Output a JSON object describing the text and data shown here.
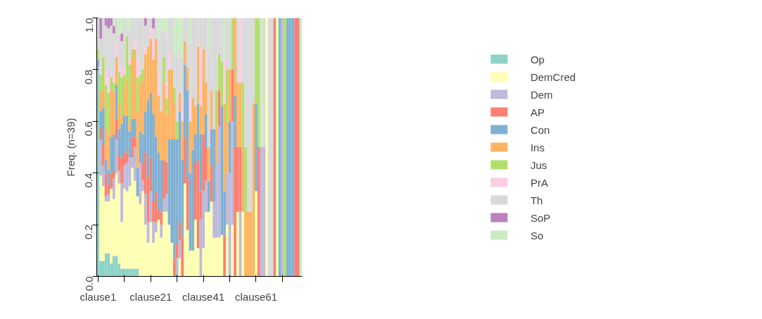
{
  "chart_data": {
    "type": "bar",
    "stacked": true,
    "ylabel": "Freq. (n=39)",
    "categories": [
      "clause1",
      null,
      null,
      null,
      null,
      null,
      null,
      null,
      null,
      null,
      null,
      null,
      null,
      null,
      null,
      null,
      null,
      null,
      null,
      null,
      "clause21",
      null,
      null,
      null,
      null,
      null,
      null,
      null,
      null,
      null,
      null,
      null,
      null,
      null,
      null,
      null,
      null,
      null,
      null,
      null,
      "clause41",
      null,
      null,
      null,
      null,
      null,
      null,
      null,
      null,
      null,
      null,
      null,
      null,
      null,
      null,
      null,
      null,
      null,
      null,
      null,
      "clause61",
      null,
      null,
      null,
      null,
      null,
      null,
      null,
      null,
      null,
      null,
      null,
      null,
      null,
      null,
      null,
      null,
      null
    ],
    "ylim": [
      0,
      1
    ],
    "yticks": [
      {
        "value": 0,
        "label": "0.0"
      },
      {
        "value": 0.2,
        "label": "0.2"
      },
      {
        "value": 0.4,
        "label": "0.4"
      },
      {
        "value": 0.6,
        "label": "0.6"
      },
      {
        "value": 0.8,
        "label": "0.8"
      },
      {
        "value": 1,
        "label": "1.0"
      }
    ],
    "grid": false,
    "legend": "right",
    "series": [
      {
        "name": "Op",
        "color": "#8dd3c7",
        "values": [
          0.81,
          0.06,
          0.06,
          0.09,
          0.09,
          0.05,
          0.08,
          0.08,
          0.05,
          0.03,
          0.03,
          0.03,
          0.03,
          0.03,
          0.03,
          0.03,
          0,
          0,
          0,
          0,
          0,
          0,
          0,
          0,
          0,
          0,
          0,
          0,
          0,
          0,
          0,
          0,
          0,
          0,
          0,
          0,
          0,
          0,
          0,
          0,
          0,
          0,
          0,
          0,
          0,
          0,
          0,
          0,
          0,
          0,
          0,
          0,
          0,
          0,
          0,
          0,
          0,
          0,
          0,
          0,
          0,
          0,
          0,
          0,
          0,
          0,
          0,
          0,
          0,
          0,
          0,
          0,
          0,
          0,
          0,
          0,
          0,
          0
        ]
      },
      {
        "name": "DemCred",
        "color": "#ffffb3",
        "values": [
          0,
          0.33,
          0.29,
          0.2,
          0.2,
          0.29,
          0.22,
          0.32,
          0.31,
          0.18,
          0.31,
          0.3,
          0.32,
          0.39,
          0.34,
          0.28,
          0.28,
          0.33,
          0.2,
          0.13,
          0.21,
          0.13,
          0.17,
          0.22,
          0.15,
          0.25,
          0.25,
          0.2,
          0.13,
          0,
          0,
          0.07,
          0,
          0.36,
          0.18,
          0.1,
          0.1,
          0.22,
          0.11,
          0,
          0.11,
          0.25,
          0.25,
          0.29,
          0.15,
          0.15,
          0.15,
          0.16,
          0,
          0.2,
          0,
          0.2,
          0,
          0.25,
          0,
          0.25,
          0,
          0,
          0,
          0,
          0.33,
          0,
          0,
          0,
          1,
          0,
          0,
          0,
          1,
          0,
          0,
          0,
          0,
          0,
          0,
          0,
          0,
          0
        ]
      },
      {
        "name": "Dem",
        "color": "#bebada",
        "values": [
          0,
          0.14,
          0.08,
          0.02,
          0.03,
          0,
          0.08,
          0.13,
          0.05,
          0.15,
          0.09,
          0.11,
          0.11,
          0.04,
          0.13,
          0,
          0.16,
          0.04,
          0.12,
          0.08,
          0.12,
          0.08,
          0.04,
          0,
          0.05,
          0.05,
          0.07,
          0,
          0,
          0,
          0.07,
          0.07,
          0,
          0,
          0,
          0,
          0,
          0,
          0,
          0.22,
          0.22,
          0.12,
          0,
          0,
          0.14,
          0.29,
          0.43,
          0,
          0,
          0.2,
          0.4,
          0.4,
          0,
          0,
          0.25,
          0,
          0,
          0,
          0,
          0,
          0,
          0,
          0.5,
          0.5,
          0,
          0,
          0,
          0,
          0,
          0,
          1,
          0,
          0,
          0,
          0,
          0,
          0,
          0
        ]
      },
      {
        "name": "AP",
        "color": "#fb8072",
        "values": [
          0,
          0.05,
          0.08,
          0.09,
          0.03,
          0.06,
          0.03,
          0.08,
          0.06,
          0.1,
          0.05,
          0.04,
          0,
          0.08,
          0.04,
          0,
          0,
          0.07,
          0.16,
          0.17,
          0.13,
          0.08,
          0.12,
          0.04,
          0.05,
          0.15,
          0.12,
          0,
          0,
          0.07,
          0.06,
          0.07,
          0.15,
          0.18,
          0.2,
          0,
          0,
          0.22,
          0.34,
          0.11,
          0.22,
          0.13,
          0,
          0.14,
          0,
          0,
          0.14,
          0,
          0.16,
          0,
          0,
          0.2,
          0.5,
          0.25,
          0.25,
          0,
          0,
          0,
          0,
          0,
          0,
          0.5,
          0,
          0,
          0,
          0,
          0,
          1,
          0,
          0,
          0,
          0,
          0,
          0,
          0,
          1,
          1,
          0
        ]
      },
      {
        "name": "Con",
        "color": "#80b1d3",
        "values": [
          0.03,
          0.06,
          0.14,
          0.05,
          0.06,
          0.14,
          0.14,
          0.13,
          0.1,
          0.13,
          0.14,
          0.14,
          0.1,
          0.07,
          0.07,
          0.11,
          0.12,
          0.11,
          0.16,
          0.3,
          0.25,
          0.34,
          0.21,
          0.22,
          0.2,
          0,
          0,
          0.33,
          0.4,
          0.46,
          0.4,
          0.43,
          0.3,
          0.28,
          0.34,
          0.3,
          0.39,
          0.11,
          0.22,
          0.22,
          0,
          0.13,
          0.12,
          0.14,
          0.28,
          0,
          0,
          0.5,
          0.17,
          0,
          0.2,
          0,
          0.2,
          0,
          0,
          0,
          0,
          0,
          0,
          0,
          0.34,
          0,
          0,
          0,
          0,
          0,
          0,
          0,
          0,
          1,
          0,
          0,
          1,
          1,
          1,
          0,
          0,
          0
        ]
      },
      {
        "name": "Ins",
        "color": "#fdb462",
        "values": [
          0,
          0.08,
          0.07,
          0.12,
          0.14,
          0.18,
          0.17,
          0.11,
          0.1,
          0.03,
          0.11,
          0.14,
          0.04,
          0.23,
          0.27,
          0.22,
          0.19,
          0.21,
          0.22,
          0.21,
          0.21,
          0.21,
          0.38,
          0.22,
          0.19,
          0.3,
          0.19,
          0.27,
          0.27,
          0.14,
          0,
          0.07,
          0.15,
          0.09,
          0.09,
          0.2,
          0.2,
          0.11,
          0.22,
          0.11,
          0.33,
          0.12,
          0.13,
          0.15,
          0,
          0.14,
          0,
          0,
          0.34,
          0.2,
          0.2,
          0,
          0.3,
          0.25,
          0.25,
          0.25,
          0.25,
          0.25,
          0.25,
          0.67,
          0,
          0,
          0,
          0,
          0,
          0,
          0,
          0,
          0,
          0,
          0,
          0,
          0,
          0,
          0,
          0,
          0,
          0
        ]
      },
      {
        "name": "Jus",
        "color": "#b3de69",
        "values": [
          0.04,
          0.06,
          0.13,
          0.17,
          0.16,
          0.05,
          0.03,
          0,
          0.12,
          0.15,
          0.05,
          0.17,
          0.22,
          0.04,
          0,
          0.13,
          0.03,
          0.04,
          0,
          0,
          0,
          0,
          0,
          0,
          0,
          0.1,
          0.06,
          0,
          0,
          0.06,
          0.07,
          0,
          0,
          0,
          0,
          0,
          0,
          0,
          0,
          0,
          0,
          0,
          0,
          0,
          0,
          0.14,
          0.14,
          0.17,
          0,
          0.2,
          0,
          0.2,
          0,
          0,
          0,
          0.25,
          0.25,
          0,
          0,
          0,
          0.33,
          0.5,
          0,
          0,
          0,
          0,
          0,
          0,
          0,
          0,
          0,
          1,
          0,
          0,
          0,
          0,
          0,
          0
        ]
      },
      {
        "name": "PrA",
        "color": "#fccde5",
        "values": [
          0,
          0.05,
          0,
          0.06,
          0.06,
          0.02,
          0.02,
          0.05,
          0.03,
          0.03,
          0.02,
          0,
          0.03,
          0,
          0.04,
          0.07,
          0,
          0,
          0.03,
          0,
          0.04,
          0.08,
          0,
          0.09,
          0,
          0,
          0.06,
          0.06,
          0,
          0,
          0,
          0,
          0.08,
          0,
          0,
          0.1,
          0,
          0,
          0,
          0.22,
          0,
          0,
          0,
          0,
          0,
          0,
          0,
          0,
          0.17,
          0,
          0,
          0,
          0,
          0,
          0.25,
          0,
          0,
          0,
          0,
          0,
          0,
          0,
          0,
          0,
          0,
          0,
          0,
          0,
          0,
          0,
          0,
          0,
          0,
          0,
          0,
          0,
          0,
          0
        ]
      },
      {
        "name": "Th",
        "color": "#d9d9d9",
        "values": [
          0.12,
          0.09,
          0.15,
          0.17,
          0.19,
          0.18,
          0.17,
          0.1,
          0.12,
          0.11,
          0.2,
          0.03,
          0.11,
          0.12,
          0.08,
          0.16,
          0.22,
          0.2,
          0.08,
          0.11,
          0.04,
          0.04,
          0.08,
          0.13,
          0.31,
          0.1,
          0.19,
          0.14,
          0.2,
          0.13,
          0.27,
          0.14,
          0.17,
          0.09,
          0.19,
          0.2,
          0.31,
          0.34,
          0.11,
          0.12,
          0.12,
          0.25,
          0.38,
          0.28,
          0.43,
          0.28,
          0.14,
          0.17,
          0,
          0.2,
          0.2,
          0,
          0,
          0.25,
          0,
          0.25,
          0.5,
          0.75,
          0.75,
          0.33,
          0,
          0,
          0,
          0.5,
          0,
          1,
          1,
          0,
          0,
          0,
          0,
          0,
          0,
          0,
          0,
          0,
          0,
          0
        ]
      },
      {
        "name": "SoP",
        "color": "#bc80bd",
        "values": [
          0,
          0.08,
          0,
          0.03,
          0.04,
          0.03,
          0.03,
          0,
          0,
          0.03,
          0,
          0,
          0,
          0,
          0,
          0,
          0,
          0,
          0.03,
          0,
          0,
          0.04,
          0,
          0,
          0,
          0,
          0,
          0,
          0,
          0,
          0,
          0,
          0,
          0,
          0,
          0,
          0,
          0,
          0,
          0,
          0,
          0,
          0,
          0,
          0,
          0,
          0,
          0,
          0,
          0,
          0,
          0,
          0,
          0,
          0,
          0,
          0,
          0,
          0,
          0,
          0,
          0,
          0,
          0,
          0,
          0,
          0,
          0,
          0,
          0,
          0,
          0,
          0,
          0,
          0,
          0,
          0,
          0
        ]
      },
      {
        "name": "So",
        "color": "#ccebc5",
        "values": [
          0,
          0,
          0,
          0,
          0,
          0,
          0.03,
          0,
          0.06,
          0.06,
          0,
          0.04,
          0.04,
          0,
          0,
          0,
          0,
          0,
          0,
          0,
          0,
          0,
          0,
          0.08,
          0.05,
          0.05,
          0.06,
          0,
          0,
          0.14,
          0.13,
          0.15,
          0.15,
          0,
          0,
          0.1,
          0,
          0,
          0,
          0,
          0,
          0,
          0.12,
          0,
          0,
          0,
          0,
          0,
          0.16,
          0,
          0,
          0,
          0,
          0,
          0,
          0,
          0,
          0,
          0,
          0,
          0,
          0,
          0.5,
          0,
          0,
          0,
          0,
          0,
          0,
          0,
          0,
          0,
          0,
          0,
          0,
          0,
          0,
          1
        ]
      }
    ]
  }
}
